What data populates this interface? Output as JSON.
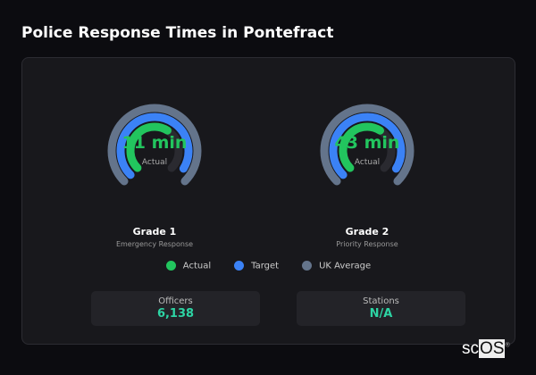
{
  "title": "Police Response Times in Pontefract",
  "colors": {
    "actual": "#22c55e",
    "target": "#3b82f6",
    "uk_average": "#64748b",
    "track": "#2a2a30"
  },
  "gauges": [
    {
      "value": "11 min",
      "value_label": "Actual",
      "name": "Grade 1",
      "subtitle": "Emergency Response",
      "actual_fill": 0.62,
      "target_fill": 0.95,
      "uk_fill": 1.0
    },
    {
      "value": "43 min",
      "value_label": "Actual",
      "name": "Grade 2",
      "subtitle": "Priority Response",
      "actual_fill": 0.62,
      "target_fill": 0.95,
      "uk_fill": 1.0
    }
  ],
  "legend": [
    "Actual",
    "Target",
    "UK Average"
  ],
  "stats": [
    {
      "label": "Officers",
      "value": "6,138"
    },
    {
      "label": "Stations",
      "value": "N/A"
    }
  ],
  "logo": {
    "text_a": "sc",
    "text_b": "OS",
    "mark": "®"
  }
}
